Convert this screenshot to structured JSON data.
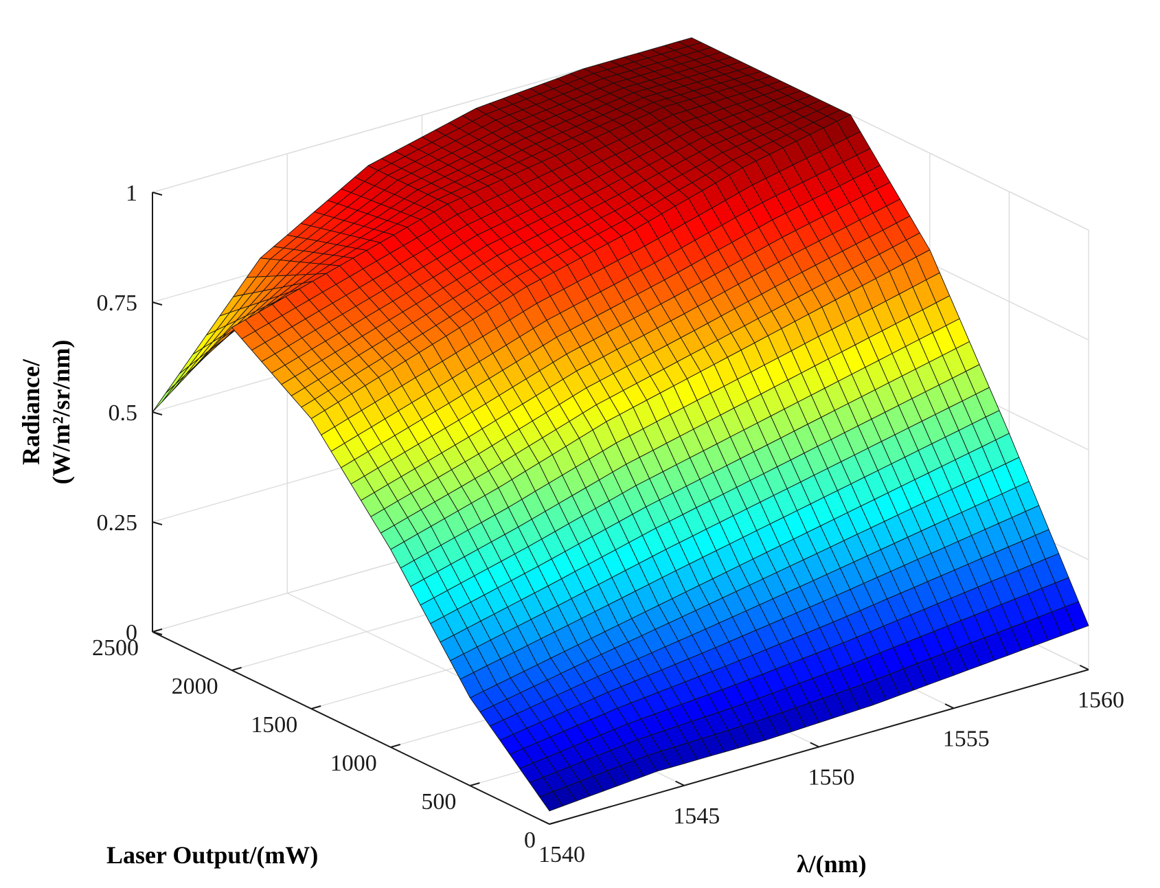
{
  "chart_data": {
    "type": "surface",
    "x_label": "λ/(nm)",
    "y_label": "Laser Output/(mW)",
    "z_label_lines": [
      "Radiance/",
      "(W/m²/sr/nm)"
    ],
    "x_ticks": [
      1540,
      1545,
      1550,
      1555,
      1560
    ],
    "y_ticks": [
      0,
      500,
      1000,
      1500,
      2000,
      2500
    ],
    "z_ticks": [
      "0",
      "0.25",
      "0.5",
      "0.75",
      "1"
    ],
    "xlim": [
      1540,
      1560
    ],
    "ylim": [
      0,
      2500
    ],
    "zlim": [
      0,
      1
    ],
    "grid": true,
    "colormap": "jet",
    "surface": {
      "wavelength_nm": [
        1540,
        1544,
        1548,
        1552,
        1556,
        1560
      ],
      "laser_output_mW": [
        0,
        500,
        1000,
        1500,
        2000,
        2500
      ],
      "radiance": [
        [
          0.03,
          0.05,
          0.05,
          0.06,
          0.08,
          0.1
        ],
        [
          0.2,
          0.25,
          0.3,
          0.35,
          0.4,
          0.45
        ],
        [
          0.45,
          0.52,
          0.6,
          0.66,
          0.72,
          0.78
        ],
        [
          0.66,
          0.74,
          0.82,
          0.88,
          0.95,
          1.0
        ],
        [
          0.78,
          0.85,
          0.92,
          0.96,
          1.0,
          1.0
        ],
        [
          0.5,
          0.78,
          0.92,
          0.98,
          1.0,
          1.0
        ]
      ]
    }
  }
}
